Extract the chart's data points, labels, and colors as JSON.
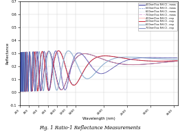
{
  "title": "Fig. 1 Ratio-1 Reflectance Measurements",
  "xlabel": "Wavelength (nm)",
  "ylabel": "Reflectance",
  "xlim": [
    200,
    3600
  ],
  "ylim": [
    -0.1,
    0.7
  ],
  "yticks": [
    -0.1,
    0.0,
    0.1,
    0.2,
    0.3,
    0.4,
    0.5,
    0.6,
    0.7
  ],
  "xticks": [
    200,
    400,
    600,
    800,
    1000,
    1200,
    1400,
    2000,
    2500,
    3000,
    3500
  ],
  "legend_entries": [
    "400nmTiox NH-Cl - meas",
    "500nmTiox NH-Cl - meas",
    "600nmTiox NH-Cl - meas",
    "700nmTiox NH-Cl - meas",
    "400nmTiox NH-Cl - exp",
    "500nmTiox NH-Cl - exp",
    "600nmTiox NH-Cl - exp",
    "700nmTiox NH-Cl - exp"
  ],
  "meas_colors": [
    "#000080",
    "#6688cc",
    "#aaccee",
    "#cc88cc"
  ],
  "exp_colors": [
    "#ff9999",
    "#cc2233",
    "#88aacc",
    "#4455aa"
  ],
  "meas_styles": [
    "-",
    "--",
    ":",
    "-."
  ],
  "background": "#ffffff",
  "grid_color": "#cccccc",
  "thicknesses": [
    400,
    500,
    600,
    700
  ]
}
